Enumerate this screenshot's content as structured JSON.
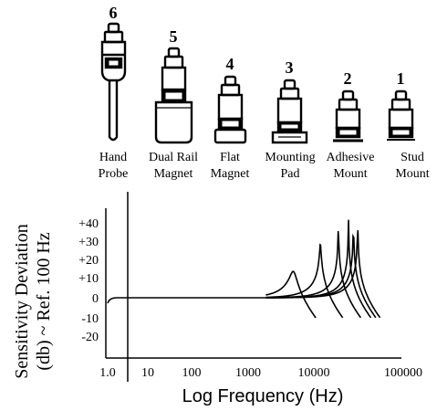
{
  "mountings": [
    {
      "number": "6",
      "label_line1": "Hand",
      "label_line2": "Probe",
      "icon": "hand-probe-sensor-icon"
    },
    {
      "number": "5",
      "label_line1": "Dual Rail",
      "label_line2": "Magnet",
      "icon": "dual-rail-magnet-sensor-icon"
    },
    {
      "number": "4",
      "label_line1": "Flat",
      "label_line2": "Magnet",
      "icon": "flat-magnet-sensor-icon"
    },
    {
      "number": "3",
      "label_line1": "Mounting",
      "label_line2": "Pad",
      "icon": "mounting-pad-sensor-icon"
    },
    {
      "number": "2",
      "label_line1": "Adhesive",
      "label_line2": "Mount",
      "icon": "adhesive-mount-sensor-icon"
    },
    {
      "number": "1",
      "label_line1": "Stud",
      "label_line2": "Mount",
      "icon": "stud-mount-sensor-icon"
    }
  ],
  "chart_data": {
    "type": "line",
    "title": "",
    "xlabel": "Log Frequency (Hz)",
    "ylabel_line1": "Sensitivity Deviation",
    "ylabel_line2": "(db) ~ Ref. 100 Hz",
    "x_scale": "log",
    "xlim": [
      1,
      100000
    ],
    "ylim": [
      -20,
      45
    ],
    "x_ticks": [
      "1.0",
      "10",
      "100",
      "1000",
      "10000",
      "100000"
    ],
    "y_ticks": [
      "+40",
      "+30",
      "+20",
      "+10",
      "0",
      "-10",
      "-20"
    ],
    "grid": false,
    "series": [
      {
        "mounting": "6",
        "resonance_hz": 4500,
        "peak_db": 14
      },
      {
        "mounting": "5",
        "resonance_hz": 11000,
        "peak_db": 29
      },
      {
        "mounting": "4",
        "resonance_hz": 20000,
        "peak_db": 39
      },
      {
        "mounting": "3",
        "resonance_hz": 28000,
        "peak_db": 42
      },
      {
        "mounting": "2",
        "resonance_hz": 33000,
        "peak_db": 44
      },
      {
        "mounting": "1",
        "resonance_hz": 38000,
        "peak_db": 45
      }
    ]
  }
}
